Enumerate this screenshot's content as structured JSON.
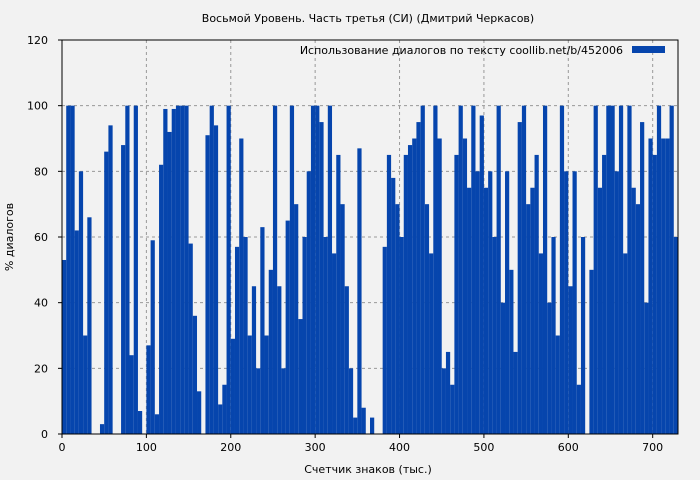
{
  "chart_data": {
    "type": "bar",
    "title": "Восьмой Уровень. Часть третья (СИ) (Дмитрий Черкасов)",
    "xlabel": "Счетчик знаков (тыс.)",
    "ylabel": "% диалогов",
    "legend": {
      "label": "Использование диалогов по тексту  coollib.net/b/452006",
      "placement": "top-right"
    },
    "series_color": "#0645ad",
    "xlim": [
      0,
      730
    ],
    "ylim": [
      0,
      120
    ],
    "x_ticks": [
      "0",
      "100",
      "200",
      "300",
      "400",
      "500",
      "600",
      "700"
    ],
    "y_ticks": [
      "0",
      "20",
      "40",
      "60",
      "80",
      "100",
      "120"
    ],
    "grid": true,
    "x_start": 0,
    "x_step": 5,
    "values": [
      53,
      100,
      100,
      62,
      80,
      30,
      66,
      0,
      0,
      3,
      86,
      94,
      0,
      0,
      88,
      100,
      24,
      100,
      7,
      0,
      27,
      59,
      6,
      82,
      99,
      92,
      99,
      100,
      100,
      100,
      58,
      36,
      13,
      0,
      91,
      100,
      94,
      9,
      15,
      100,
      29,
      57,
      90,
      60,
      30,
      45,
      20,
      63,
      30,
      50,
      100,
      45,
      20,
      65,
      100,
      70,
      35,
      60,
      80,
      100,
      100,
      95,
      60,
      100,
      55,
      85,
      70,
      45,
      20,
      5,
      87,
      8,
      0,
      5,
      0,
      0,
      57,
      85,
      78,
      70,
      60,
      85,
      88,
      90,
      95,
      100,
      70,
      55,
      100,
      90,
      20,
      25,
      15,
      85,
      100,
      90,
      75,
      100,
      80,
      97,
      75,
      80,
      60,
      100,
      40,
      80,
      50,
      25,
      95,
      100,
      70,
      75,
      85,
      55,
      100,
      40,
      60,
      30,
      100,
      80,
      45,
      80,
      15,
      60,
      0,
      50,
      100,
      75,
      85,
      100,
      100,
      80,
      100,
      55,
      100,
      75,
      70,
      95,
      40,
      90,
      85,
      100,
      90,
      90,
      100,
      60,
      70
    ]
  }
}
